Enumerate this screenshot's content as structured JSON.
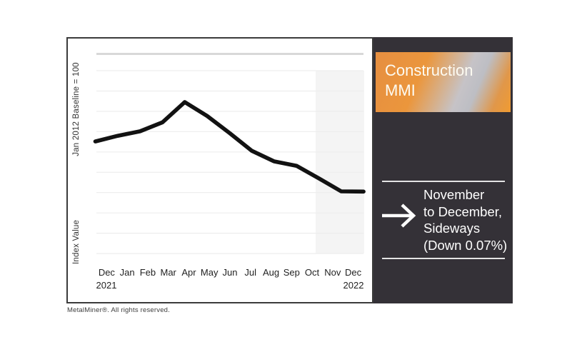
{
  "colors": {
    "accent_orange": "#EE9B33",
    "orange_gradient_start": "#E68F41",
    "silver_gradient_mid": "#C3C2C8",
    "panel_background": "#343137",
    "chart_line": "#121212",
    "grid_major": "#D8D8D8",
    "grid_minor": "#EDEDED",
    "highlight_band": "#F4F4F4",
    "box_border": "#3B3B3B",
    "text_light": "#FFFFFF",
    "text_dark": "#1F1F1F"
  },
  "chart": {
    "baseline_label": "Jan 2012 Baseline = 100",
    "index_label": "Index Value",
    "year_left": "2021",
    "year_right": "2022"
  },
  "panel": {
    "title_line1": "Construction",
    "title_line2": "MMI",
    "trend_icon": "right-arrow",
    "trend": {
      "line1": "November",
      "line2": "to December,",
      "line3": "Sideways",
      "line4": "(Down 0.07%)"
    }
  },
  "footer": {
    "text": "MetalMiner®. All rights reserved."
  },
  "chart_data": {
    "type": "line",
    "title": "Construction MMI",
    "categories": [
      "Dec",
      "Jan",
      "Feb",
      "Mar",
      "Apr",
      "May",
      "Jun",
      "Jul",
      "Aug",
      "Sep",
      "Oct",
      "Nov",
      "Dec"
    ],
    "x_first_label": "Dec 2021",
    "x_last_label": "Dec 2022",
    "series": [
      {
        "name": "Construction MMI",
        "values": [
          102.8,
          104.2,
          105.3,
          107.5,
          112.5,
          109.1,
          104.9,
          100.5,
          97.9,
          96.8,
          93.7,
          90.5,
          90.44
        ]
      }
    ],
    "xlabel": "",
    "ylabel": "Index Value",
    "y_axis_note": "Jan 2012 Baseline = 100",
    "ylim": [
      85,
      116
    ],
    "y_tick_labels_shown": false,
    "gridlines": "horizontal",
    "legend_position": "none",
    "highlight_band": {
      "from": "Oct",
      "to": "Dec"
    },
    "annotation": "November to December, Sideways (Down 0.07%)"
  }
}
